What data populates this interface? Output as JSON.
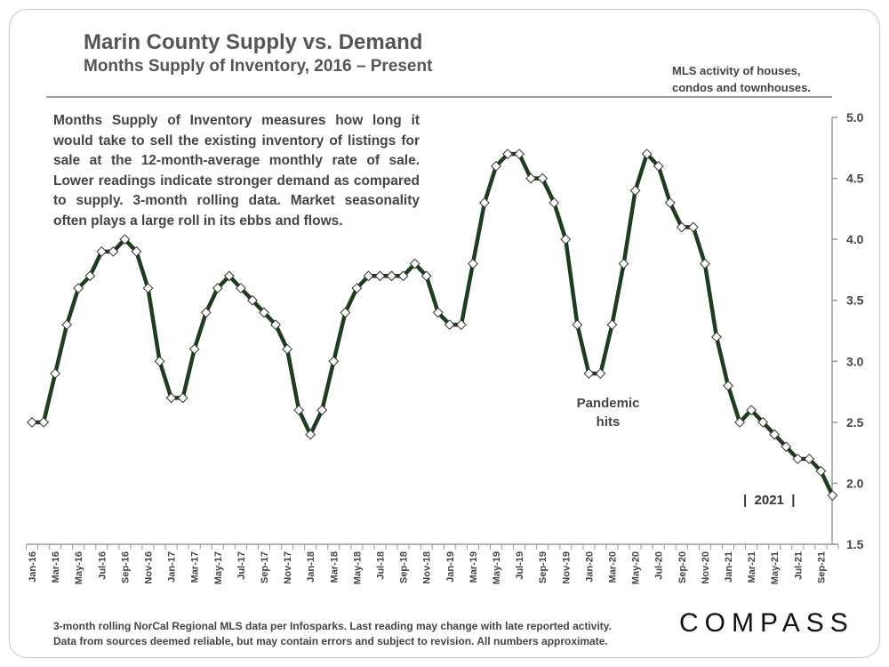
{
  "header": {
    "title": "Marin County Supply vs. Demand",
    "subtitle": "Months Supply of Inventory, 2016 – Present",
    "note_line1": "MLS activity of houses,",
    "note_line2": "condos and townhouses."
  },
  "description": "Months Supply of Inventory measures how long it would take to sell the existing inventory of listings for sale at the 12-month-average monthly rate of sale. Lower readings indicate stronger demand as compared to supply. 3-month rolling data. Market seasonality often plays a large roll in its ebbs and flows.",
  "annotations": {
    "pandemic_line1": "Pandemic",
    "pandemic_line2": "hits",
    "year_marker": "|  2021  |"
  },
  "footer": {
    "line1": "3-month rolling NorCal Regional MLS data per Infosparks. Last reading may change with late reported activity.",
    "line2": "Data from sources deemed reliable, but may contain errors and subject to revision. All numbers approximate."
  },
  "brand": {
    "logo_text": "COMPASS"
  },
  "colors": {
    "line": "#1e3d1f",
    "marker_fill": "#ffffff",
    "axis": "#9a9a9a",
    "text": "#444444"
  },
  "chart_data": {
    "type": "line",
    "title": "Months Supply of Inventory, 2016 – Present",
    "xlabel": "",
    "ylabel": "",
    "ylim": [
      1.5,
      5.0
    ],
    "yticks": [
      "1.5",
      "2.0",
      "2.5",
      "3.0",
      "3.5",
      "4.0",
      "4.5",
      "5.0"
    ],
    "tick_labels": [
      "Jan-16",
      "Mar-16",
      "May-16",
      "Jul-16",
      "Sep-16",
      "Nov-16",
      "Jan-17",
      "Mar-17",
      "May-17",
      "Jul-17",
      "Sep-17",
      "Nov-17",
      "Jan-18",
      "Mar-18",
      "May-18",
      "Jul-18",
      "Sep-18",
      "Nov-18",
      "Jan-19",
      "Mar-19",
      "May-19",
      "Jul-19",
      "Sep-19",
      "Nov-19",
      "Jan-20",
      "Mar-20",
      "May-20",
      "Jul-20",
      "Sep-20",
      "Nov-20",
      "Jan-21",
      "Mar-21",
      "May-21",
      "Jul-21",
      "Sep-21"
    ],
    "categories": [
      "Jan-16",
      "Feb-16",
      "Mar-16",
      "Apr-16",
      "May-16",
      "Jun-16",
      "Jul-16",
      "Aug-16",
      "Sep-16",
      "Oct-16",
      "Nov-16",
      "Dec-16",
      "Jan-17",
      "Feb-17",
      "Mar-17",
      "Apr-17",
      "May-17",
      "Jun-17",
      "Jul-17",
      "Aug-17",
      "Sep-17",
      "Oct-17",
      "Nov-17",
      "Dec-17",
      "Jan-18",
      "Feb-18",
      "Mar-18",
      "Apr-18",
      "May-18",
      "Jun-18",
      "Jul-18",
      "Aug-18",
      "Sep-18",
      "Oct-18",
      "Nov-18",
      "Dec-18",
      "Jan-19",
      "Feb-19",
      "Mar-19",
      "Apr-19",
      "May-19",
      "Jun-19",
      "Jul-19",
      "Aug-19",
      "Sep-19",
      "Oct-19",
      "Nov-19",
      "Dec-19",
      "Jan-20",
      "Feb-20",
      "Mar-20",
      "Apr-20",
      "May-20",
      "Jun-20",
      "Jul-20",
      "Aug-20",
      "Sep-20",
      "Oct-20",
      "Nov-20",
      "Dec-20",
      "Jan-21",
      "Feb-21",
      "Mar-21",
      "Apr-21",
      "May-21",
      "Jun-21",
      "Jul-21",
      "Aug-21",
      "Sep-21",
      "Oct-21"
    ],
    "series": [
      {
        "name": "Months Supply of Inventory",
        "values": [
          2.5,
          2.5,
          2.9,
          3.3,
          3.6,
          3.7,
          3.9,
          3.9,
          4.0,
          3.9,
          3.6,
          3.0,
          2.7,
          2.7,
          3.1,
          3.4,
          3.6,
          3.7,
          3.6,
          3.5,
          3.4,
          3.3,
          3.1,
          2.6,
          2.4,
          2.6,
          3.0,
          3.4,
          3.6,
          3.7,
          3.7,
          3.7,
          3.7,
          3.8,
          3.7,
          3.4,
          3.3,
          3.3,
          3.8,
          4.3,
          4.6,
          4.7,
          4.7,
          4.5,
          4.5,
          4.3,
          4.0,
          3.3,
          2.9,
          2.9,
          3.3,
          3.8,
          4.4,
          4.7,
          4.6,
          4.3,
          4.1,
          4.1,
          3.8,
          3.2,
          2.8,
          2.5,
          2.6,
          2.5,
          2.4,
          2.3,
          2.2,
          2.2,
          2.1,
          1.9
        ]
      }
    ]
  }
}
